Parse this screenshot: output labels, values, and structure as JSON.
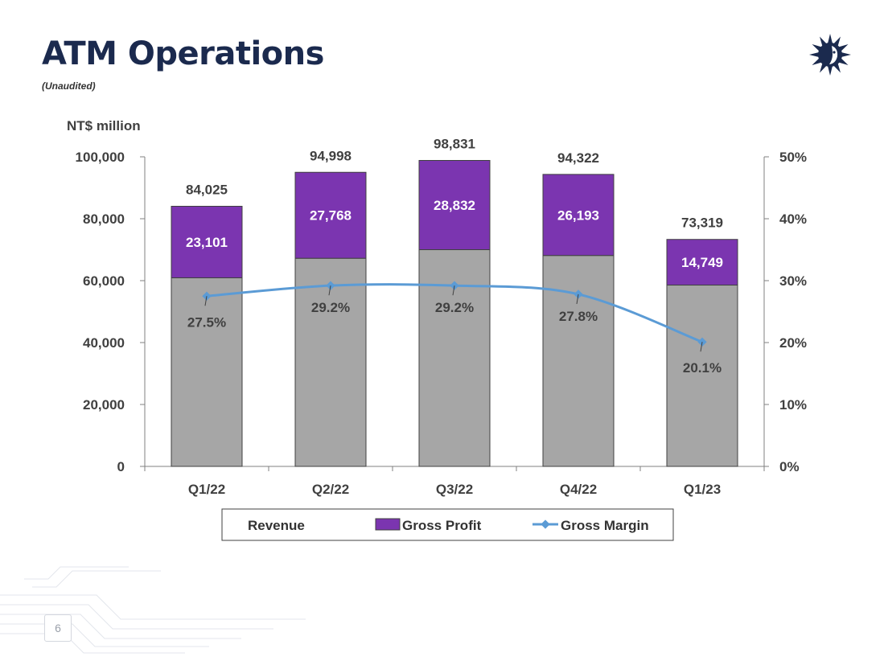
{
  "page": {
    "title": "ATM Operations",
    "subtitle": "(Unaudited)",
    "page_number": "6"
  },
  "colors": {
    "title": "#1b2a4e",
    "revenue": "#a6a6a6",
    "gross_profit": "#7b35b0",
    "gross_margin": "#5b9bd5",
    "text": "#404040",
    "logo": "#1b2a4e"
  },
  "logo": {
    "icon": "sun-face-logo-icon"
  },
  "chart_data": {
    "type": "bar",
    "stacked": true,
    "unit_label": "NT$ million",
    "categories": [
      "Q1/22",
      "Q2/22",
      "Q3/22",
      "Q4/22",
      "Q1/23"
    ],
    "y_left": {
      "min": 0,
      "max": 100000,
      "ticks": [
        "0",
        "20,000",
        "40,000",
        "60,000",
        "80,000",
        "100,000"
      ]
    },
    "y_right": {
      "min": 0,
      "max": 50,
      "ticks": [
        "0%",
        "10%",
        "20%",
        "30%",
        "40%",
        "50%"
      ]
    },
    "series": [
      {
        "name": "Revenue",
        "type": "bar",
        "values": [
          84025,
          94998,
          98831,
          94322,
          73319
        ],
        "labels": [
          "84,025",
          "94,998",
          "98,831",
          "94,322",
          "73,319"
        ]
      },
      {
        "name": "Gross Profit",
        "type": "bar",
        "values": [
          23101,
          27768,
          28832,
          26193,
          14749
        ],
        "labels": [
          "23,101",
          "27,768",
          "28,832",
          "26,193",
          "14,749"
        ]
      },
      {
        "name": "Gross Margin",
        "type": "line",
        "axis": "right",
        "values": [
          27.5,
          29.2,
          29.2,
          27.8,
          20.1
        ],
        "labels": [
          "27.5%",
          "29.2%",
          "29.2%",
          "27.8%",
          "20.1%"
        ]
      }
    ],
    "legend": [
      "Revenue",
      "Gross Profit",
      "Gross Margin"
    ],
    "legend_position": "bottom"
  }
}
